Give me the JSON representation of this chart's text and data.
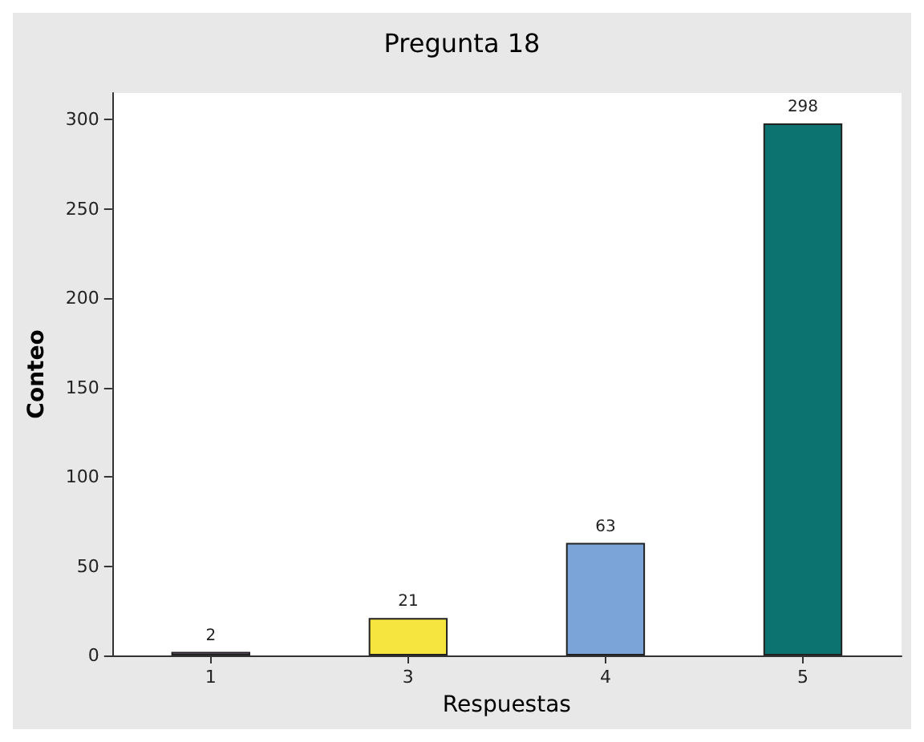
{
  "chart_data": {
    "type": "bar",
    "title": "Pregunta 18",
    "xlabel": "Respuestas",
    "ylabel": "Conteo",
    "categories": [
      "1",
      "3",
      "4",
      "5"
    ],
    "values": [
      2,
      21,
      63,
      298
    ],
    "colors": [
      "#8e6a8e",
      "#f7e53f",
      "#7ba5d8",
      "#0d7370"
    ],
    "ylim": [
      0,
      315
    ],
    "yticks": [
      0,
      50,
      100,
      150,
      200,
      250,
      300
    ],
    "data_labels": true,
    "grid": false
  }
}
